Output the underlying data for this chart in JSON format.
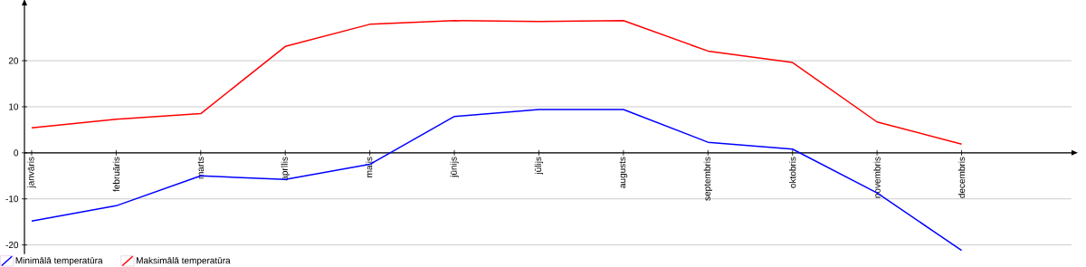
{
  "chart_data": {
    "type": "line",
    "categories": [
      "janvāris",
      "februāris",
      "marts",
      "aprīlis",
      "maijs",
      "jūnijs",
      "jūlijs",
      "augusts",
      "septembris",
      "oktobris",
      "novembris",
      "decembris"
    ],
    "series": [
      {
        "name": "Minimālā temperatūra",
        "color": "#0000ff",
        "values": [
          -14.8,
          -11.5,
          -5,
          -5.8,
          -2.5,
          7.9,
          9.4,
          9.4,
          2.3,
          0.8,
          -8.7,
          -21.2
        ]
      },
      {
        "name": "Maksimālā temperatūra",
        "color": "#ff0000",
        "values": [
          5.4,
          7.3,
          8.5,
          23.1,
          27.9,
          28.7,
          28.5,
          28.7,
          22.1,
          19.6,
          6.7,
          1.9
        ]
      }
    ],
    "ylim": [
      -22,
      32
    ],
    "yticks": [
      -20,
      -10,
      0,
      10,
      20
    ],
    "grid": "y",
    "legend": "bottom left"
  }
}
